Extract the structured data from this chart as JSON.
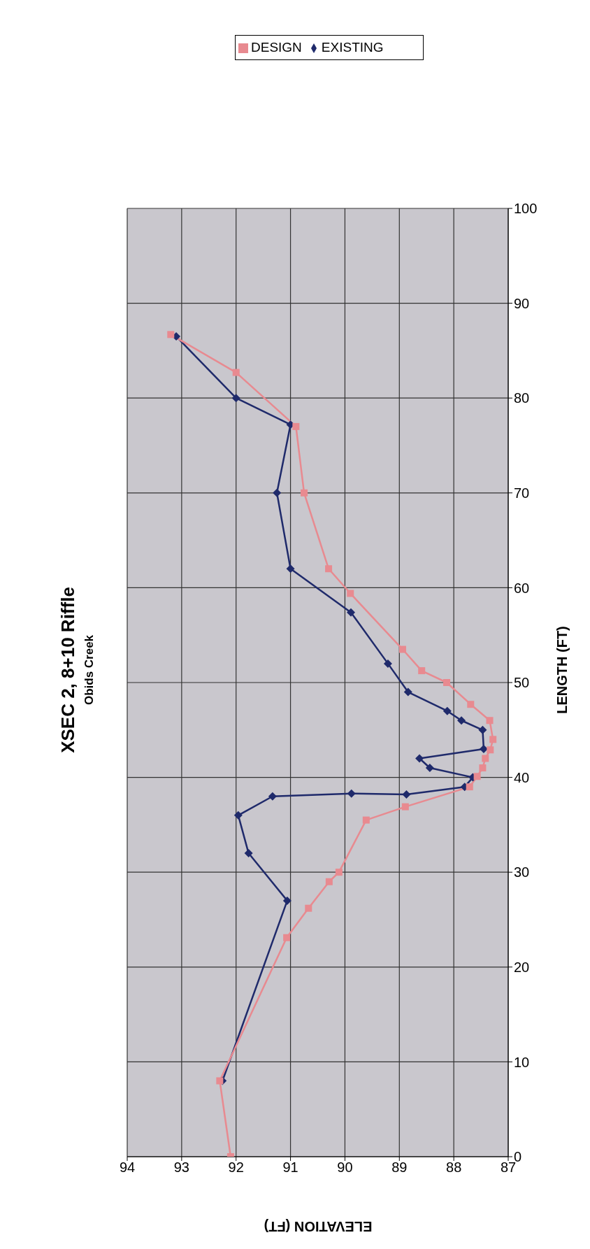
{
  "chart_data": {
    "type": "line",
    "title": "XSEC 2, 8+10 Riffle",
    "subtitle": "Obids Creek",
    "xlabel": "ELEVATION (FT)",
    "ylabel": "LENGTH (FT)",
    "xlim": [
      94,
      87
    ],
    "xticks": [
      94,
      93,
      92,
      91,
      90,
      89,
      88,
      87
    ],
    "ylim": [
      0,
      100
    ],
    "yticks": [
      0,
      10,
      20,
      30,
      40,
      50,
      60,
      70,
      80,
      90,
      100
    ],
    "grid": true,
    "legend": "top",
    "line_style": "solid",
    "series": [
      {
        "name": "EXISTING",
        "color": "#1f2a6b",
        "marker": "diamond",
        "x": [
          92.25,
          91.06,
          91.77,
          91.96,
          91.33,
          89.88,
          88.87,
          87.8,
          87.65,
          88.44,
          88.63,
          87.45,
          87.47,
          87.86,
          88.12,
          88.84,
          89.21,
          89.89,
          91.0,
          91.25,
          91.0,
          92.0,
          93.1
        ],
        "values": [
          8,
          27,
          32,
          36,
          38,
          38.3,
          38.2,
          39,
          40,
          41,
          42,
          43,
          45,
          46,
          47,
          49,
          52,
          57.4,
          62,
          70,
          77.2,
          80,
          86.5
        ]
      },
      {
        "name": "DESIGN",
        "color": "#e88a90",
        "marker": "square",
        "x": [
          92.1,
          92.3,
          91.07,
          90.67,
          90.29,
          90.11,
          89.61,
          88.89,
          87.71,
          87.57,
          87.47,
          87.42,
          87.33,
          87.28,
          87.34,
          87.69,
          88.13,
          88.59,
          88.94,
          89.9,
          90.3,
          90.75,
          90.9,
          92.0,
          93.2
        ],
        "values": [
          0,
          8,
          23.1,
          26.2,
          29,
          30,
          35.5,
          36.9,
          39,
          40.1,
          41,
          42,
          42.9,
          44,
          46,
          47.7,
          50,
          51.25,
          53.5,
          59.4,
          62,
          70,
          77,
          82.7,
          86.7
        ]
      }
    ]
  }
}
